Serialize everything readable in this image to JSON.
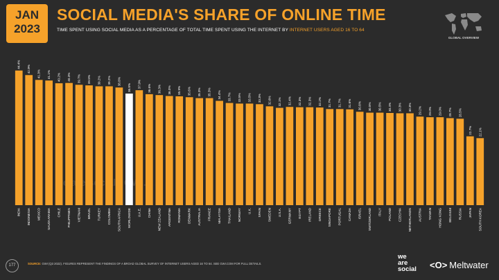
{
  "header": {
    "month": "JAN",
    "year": "2023",
    "title": "SOCIAL MEDIA'S SHARE OF ONLINE TIME",
    "subtitle_main": "TIME SPENT USING SOCIAL MEDIA AS A PERCENTAGE OF TOTAL TIME SPENT USING THE INTERNET BY ",
    "subtitle_highlight": "INTERNET USERS AGED 16 TO 64",
    "map_label": "GLOBAL OVERVIEW"
  },
  "footer": {
    "page_number": "177",
    "source_label": "SOURCE:",
    "source_text": "GWI (Q3 2022). FIGURES REPRESENT THE FINDINGS OF A BROAD GLOBAL SURVEY OF INTERNET USERS AGED 16 TO 64. SEE GWI.COM FOR FULL DETAILS.",
    "logo_we": "we",
    "logo_are": "are",
    "logo_social": "social",
    "logo_meltwater": "Meltwater",
    "logo_meltwater_mark": "<O>",
    "watermark_we_are_social": "we are social",
    "watermark_gwi": "GWI."
  },
  "colors": {
    "background": "#2b2b2b",
    "bar": "#f6a22a",
    "highlight_bar": "#ffffff",
    "text": "#ffffff"
  },
  "chart_data": {
    "type": "bar",
    "highlight": "WORLDWIDE",
    "categories": [
      "INDIA",
      "INDONESIA",
      "MEXICO",
      "SAUDI ARABIA",
      "CHILE",
      "PHILIPPINES",
      "VIETNAM",
      "BRAZIL",
      "TURKEY",
      "COLOMBIA",
      "SOUTH AFRICA",
      "WORLDWIDE",
      "U.A.E.",
      "CHINA",
      "NEW ZEALAND",
      "ARGENTINA",
      "ROMANIA",
      "DENMARK",
      "AUSTRALIA",
      "FRANCE",
      "MALAYSIA",
      "THAILAND",
      "NORWAY",
      "U.K.",
      "SPAIN",
      "SWEDEN",
      "U.S.A.",
      "GERMANY",
      "EGYPT",
      "IRELAND",
      "GREECE",
      "SINGAPORE",
      "PORTUGAL",
      "CANADA",
      "ISRAEL",
      "SWITZERLAND",
      "ITALY",
      "POLAND",
      "CZECHIA",
      "NETHERLANDS",
      "AUSTRIA",
      "TAIWAN",
      "HONG KONG",
      "BELGIUM",
      "RUSSIA",
      "JAPAN",
      "SOUTH KOREA"
    ],
    "values": [
      44.4,
      42.9,
      41.3,
      41.1,
      40.2,
      40.3,
      39.7,
      39.5,
      39.2,
      39.2,
      38.8,
      36.8,
      37.9,
      36.6,
      36.3,
      36.0,
      35.9,
      35.6,
      35.3,
      35.3,
      34.4,
      33.7,
      33.5,
      33.5,
      33.3,
      32.6,
      32.1,
      32.4,
      32.3,
      32.3,
      32.2,
      31.7,
      31.7,
      31.6,
      30.8,
      30.5,
      30.5,
      30.4,
      30.3,
      30.3,
      29.2,
      29.0,
      29.0,
      28.7,
      28.5,
      22.7,
      22.1
    ],
    "value_labels": [
      "44.4%",
      "42.9%",
      "41.3%",
      "41.1%",
      "40.2%",
      "40.3%",
      "39.7%",
      "39.5%",
      "39.2%",
      "39.2%",
      "38.8%",
      "36.8%",
      "37.9%",
      "36.6%",
      "36.3%",
      "36.0%",
      "35.9%",
      "35.6%",
      "35.3%",
      "35.3%",
      "34.4%",
      "33.7%",
      "33.5%",
      "33.5%",
      "33.3%",
      "32.6%",
      "32.1%",
      "32.4%",
      "32.3%",
      "32.3%",
      "32.2%",
      "31.7%",
      "31.7%",
      "31.6%",
      "30.8%",
      "30.5%",
      "30.5%",
      "30.4%",
      "30.3%",
      "30.3%",
      "29.2%",
      "29.0%",
      "29.0%",
      "28.7%",
      "28.5%",
      "22.7%",
      "22.1%"
    ],
    "ylim": [
      0,
      48
    ],
    "grid": false,
    "legend": "none"
  }
}
